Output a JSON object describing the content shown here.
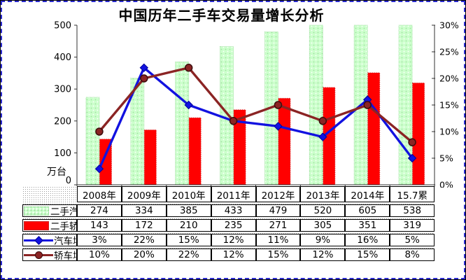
{
  "chart_data": {
    "type": "combo-bar-line",
    "title": "中国历年二手车交易量增长分析",
    "categories": [
      "2008年",
      "2009年",
      "2010年",
      "2011年",
      "2012年",
      "2013年",
      "2014年",
      "15.7累"
    ],
    "series": [
      {
        "name": "二手汽车",
        "kind": "bar",
        "color": "#ccffcc",
        "values": [
          274,
          334,
          385,
          433,
          479,
          520,
          605,
          538
        ],
        "table": [
          "274",
          "334",
          "385",
          "433",
          "479",
          "520",
          "605",
          "538"
        ]
      },
      {
        "name": "二手轿车",
        "kind": "bar",
        "color": "#ff0000",
        "values": [
          143,
          172,
          210,
          235,
          271,
          305,
          351,
          319
        ],
        "table": [
          "143",
          "172",
          "210",
          "235",
          "271",
          "305",
          "351",
          "319"
        ]
      },
      {
        "name": "汽车增速",
        "kind": "line",
        "marker": "diamond",
        "color": "#1212e0",
        "marker_stroke": "#00009a",
        "values": [
          3,
          22,
          15,
          12,
          11,
          9,
          16,
          5
        ],
        "table": [
          "3%",
          "22%",
          "15%",
          "12%",
          "11%",
          "9%",
          "16%",
          "5%"
        ]
      },
      {
        "name": "轿车增速",
        "kind": "line",
        "marker": "circle",
        "color": "#8b2424",
        "marker_stroke": "#3d0d0d",
        "values": [
          10,
          20,
          22,
          12,
          15,
          12,
          15,
          8
        ],
        "table": [
          "10%",
          "20%",
          "22%",
          "12%",
          "15%",
          "12%",
          "15%",
          "8%"
        ]
      }
    ],
    "left_axis": {
      "unit_label": "万台",
      "ticks": [
        "0",
        "100",
        "200",
        "300",
        "400",
        "500"
      ],
      "min": 0,
      "max": 500
    },
    "right_axis": {
      "tick_labels": [
        "0%",
        "5%",
        "10%",
        "15%",
        "20%",
        "25%",
        "30%"
      ],
      "min": 0,
      "max": 30
    },
    "legend_position": "table-left",
    "grid": false,
    "bar_border_green": "#9fdf9f",
    "bar_border_red": "#cc2222"
  }
}
